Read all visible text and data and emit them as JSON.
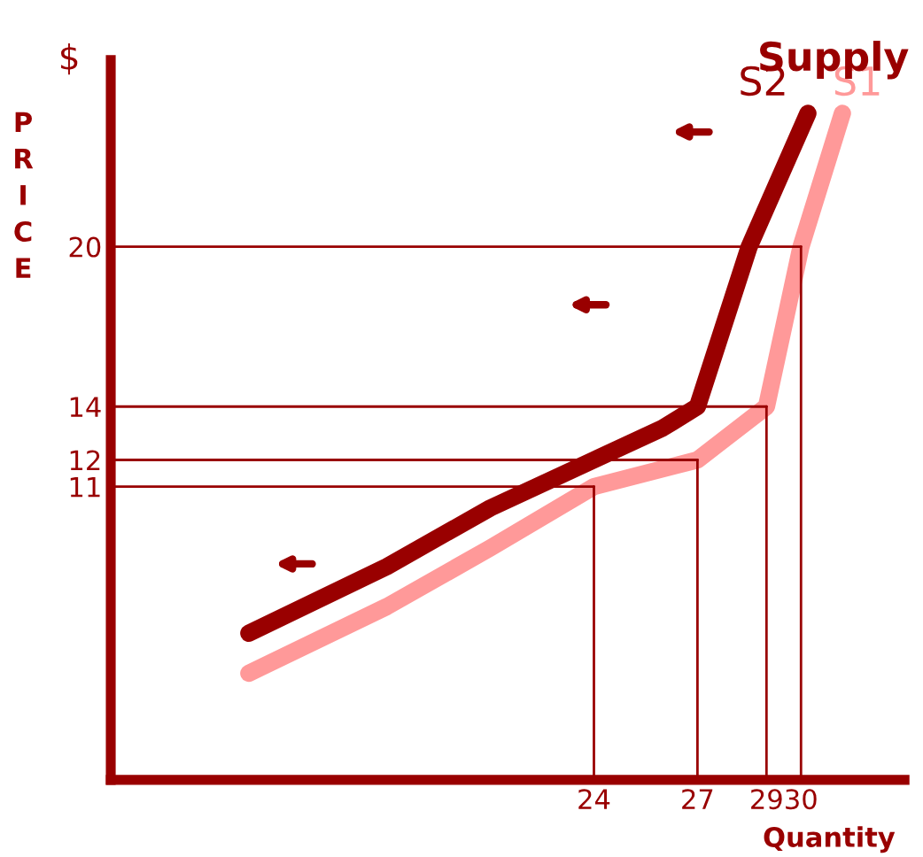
{
  "chart_data": {
    "type": "line",
    "title": "Supply",
    "xlabel": "Quantity",
    "ylabel": "PRICE",
    "annotations": [
      "$"
    ],
    "xlim": [
      10,
      33
    ],
    "ylim": [
      0,
      27
    ],
    "xticks": [
      24,
      27,
      29,
      30
    ],
    "yticks": [
      11,
      12,
      14,
      20
    ],
    "series": [
      {
        "name": "S1",
        "color": "#ff9999",
        "x": [
          14,
          18,
          21,
          24,
          27,
          29,
          30,
          31.2
        ],
        "values": [
          4,
          6.5,
          8.7,
          11,
          12,
          14,
          20,
          25
        ]
      },
      {
        "name": "S2",
        "color": "#990000",
        "x": [
          14,
          18,
          21,
          24,
          26,
          27,
          28.5,
          30.2
        ],
        "values": [
          5.5,
          8,
          10.2,
          12,
          13.2,
          14,
          20,
          25
        ]
      }
    ],
    "ref_lines": [
      {
        "axis": "y",
        "value": 11
      },
      {
        "axis": "y",
        "value": 12
      },
      {
        "axis": "y",
        "value": 14
      },
      {
        "axis": "y",
        "value": 20
      },
      {
        "axis": "x",
        "value": 24
      },
      {
        "axis": "x",
        "value": 27
      },
      {
        "axis": "x",
        "value": 29
      },
      {
        "axis": "x",
        "value": 30
      }
    ],
    "grid": false,
    "marker": "none",
    "line_style": "solid"
  }
}
